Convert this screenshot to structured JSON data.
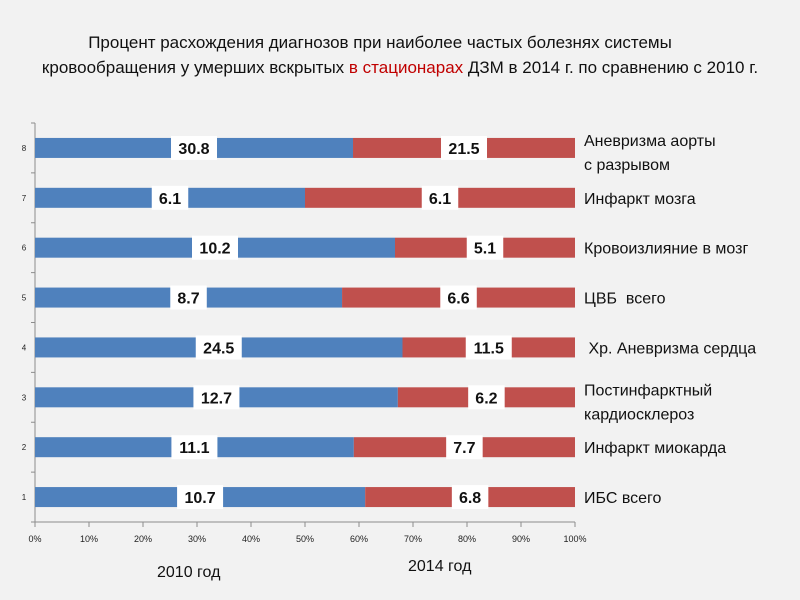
{
  "title": {
    "line1": "Процент расхождения диагнозов при наиболее частых  болезнях системы",
    "line2_before": "кровообращения у умерших вскрытых ",
    "line2_highlight": "в стационарах",
    "line2_after": " ДЗМ в 2014  г. по сравнению  с  2010 г."
  },
  "chart_data": {
    "type": "bar",
    "orientation": "horizontal",
    "stacked_percent": true,
    "categories": [
      "1",
      "2",
      "3",
      "4",
      "5",
      "6",
      "7",
      "8"
    ],
    "category_labels": [
      [
        "ИБС всего"
      ],
      [
        "Инфаркт миокарда"
      ],
      [
        "Постинфарктный",
        "кардиосклероз"
      ],
      [
        " Хр. Аневризма сердца"
      ],
      [
        "ЦВБ  всего"
      ],
      [
        "Кровоизлияние в мозг"
      ],
      [
        "Инфаркт мозга"
      ],
      [
        "Аневризма аорты",
        "с разрывом"
      ]
    ],
    "series": [
      {
        "name": "2010 год",
        "color": "#4f81bd",
        "values": [
          10.7,
          11.1,
          12.7,
          24.5,
          8.7,
          10.2,
          6.1,
          30.8
        ],
        "labels": [
          "10.7",
          "11.1",
          "12.7",
          "24.5",
          "8.7",
          "10.2",
          "6.1",
          "30.8"
        ]
      },
      {
        "name": "2014 год",
        "color": "#c0504d",
        "values": [
          6.8,
          7.7,
          6.2,
          11.5,
          6.6,
          5.1,
          6.1,
          21.5
        ],
        "labels": [
          "6.8",
          "7.7",
          "6.2",
          "11.5",
          "6.6",
          "5.1",
          "6.1",
          "21.5"
        ]
      }
    ],
    "x_ticks": [
      "0%",
      "10%",
      "20%",
      "30%",
      "40%",
      "50%",
      "60%",
      "70%",
      "80%",
      "90%",
      "100%"
    ],
    "xlim": [
      0,
      100
    ]
  }
}
